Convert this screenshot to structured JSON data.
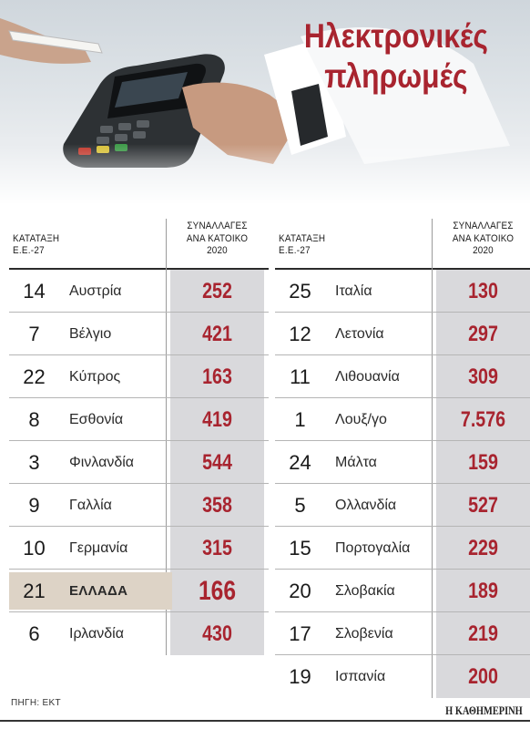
{
  "title": {
    "line1": "Ηλεκτρονικές",
    "line2": "πληρωμές"
  },
  "headers": {
    "rank": [
      "ΚΑΤΑΤΑΞΗ",
      "Ε.Ε.-27"
    ],
    "transactions": [
      "ΣΥΝΑΛΛΑΓΕΣ",
      "ΑΝΑ ΚΑΤΟΙΚΟ",
      "2020"
    ]
  },
  "colors": {
    "accent": "#a8242f",
    "value_column": "#d9d9dc",
    "highlight_row": "#ddd3c6"
  },
  "chart_data": {
    "type": "table",
    "columns": [
      "ΚΑΤΑΤΑΞΗ Ε.Ε.-27",
      "ΣΥΝΑΛΛΑΓΕΣ ΑΝΑ ΚΑΤΟΙΚΟ 2020"
    ],
    "left": [
      {
        "rank": "14",
        "country": "Αυστρία",
        "value": "252"
      },
      {
        "rank": "7",
        "country": "Βέλγιο",
        "value": "421"
      },
      {
        "rank": "22",
        "country": "Κύπρος",
        "value": "163"
      },
      {
        "rank": "8",
        "country": "Εσθονία",
        "value": "419"
      },
      {
        "rank": "3",
        "country": "Φινλανδία",
        "value": "544"
      },
      {
        "rank": "9",
        "country": "Γαλλία",
        "value": "358"
      },
      {
        "rank": "10",
        "country": "Γερμανία",
        "value": "315"
      },
      {
        "rank": "21",
        "country": "ΕΛΛΑΔΑ",
        "value": "166",
        "highlight": true
      },
      {
        "rank": "6",
        "country": "Ιρλανδία",
        "value": "430"
      }
    ],
    "right": [
      {
        "rank": "25",
        "country": "Ιταλία",
        "value": "130"
      },
      {
        "rank": "12",
        "country": "Λετονία",
        "value": "297"
      },
      {
        "rank": "11",
        "country": "Λιθουανία",
        "value": "309"
      },
      {
        "rank": "1",
        "country": "Λουξ/γο",
        "value": "7.576"
      },
      {
        "rank": "24",
        "country": "Μάλτα",
        "value": "159"
      },
      {
        "rank": "5",
        "country": "Ολλανδία",
        "value": "527"
      },
      {
        "rank": "15",
        "country": "Πορτογαλία",
        "value": "229"
      },
      {
        "rank": "20",
        "country": "Σλοβακία",
        "value": "189"
      },
      {
        "rank": "17",
        "country": "Σλοβενία",
        "value": "219"
      },
      {
        "rank": "19",
        "country": "Ισπανία",
        "value": "200"
      }
    ]
  },
  "source": "ΠΗΓΗ: ΕΚΤ",
  "brand": "Η ΚΑΘΗΜΕΡΙΝΗ"
}
